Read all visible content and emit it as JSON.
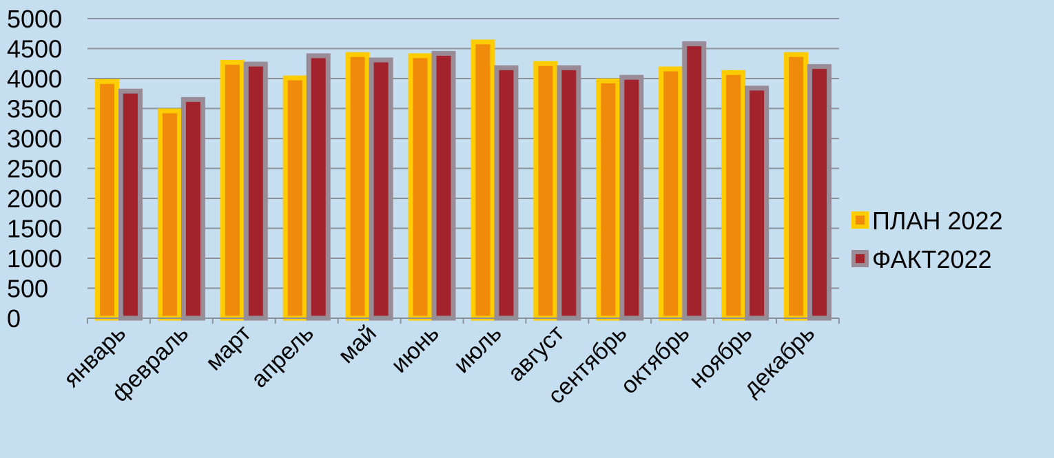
{
  "chart_data": {
    "type": "bar",
    "title": "",
    "xlabel": "",
    "ylabel": "",
    "categories": [
      "январь",
      "февраль",
      "март",
      "апрель",
      "май",
      "июнь",
      "июль",
      "август",
      "сентябрь",
      "октябрь",
      "ноябрь",
      "декабрь"
    ],
    "series": [
      {
        "name": "ПЛАН 2022",
        "values": [
          3950,
          3460,
          4270,
          4010,
          4400,
          4380,
          4610,
          4250,
          3960,
          4160,
          4100,
          4400
        ]
      },
      {
        "name": "ФАКТ2022",
        "values": [
          3790,
          3650,
          4240,
          4380,
          4310,
          4420,
          4180,
          4180,
          4020,
          4580,
          3840,
          4200
        ]
      }
    ],
    "ylim": [
      0,
      5000
    ],
    "yticks": [
      0,
      500,
      1000,
      1500,
      2000,
      2500,
      3000,
      3500,
      4000,
      4500,
      5000
    ],
    "grid": true,
    "legend": "right",
    "colors": {
      "plan_fill": "#f08a0b",
      "plan_border": "#ffcc00",
      "fact_fill": "#a3232d",
      "fact_border": "#9a8c96",
      "grid": "#8c9299",
      "background": "#c5def0"
    }
  }
}
